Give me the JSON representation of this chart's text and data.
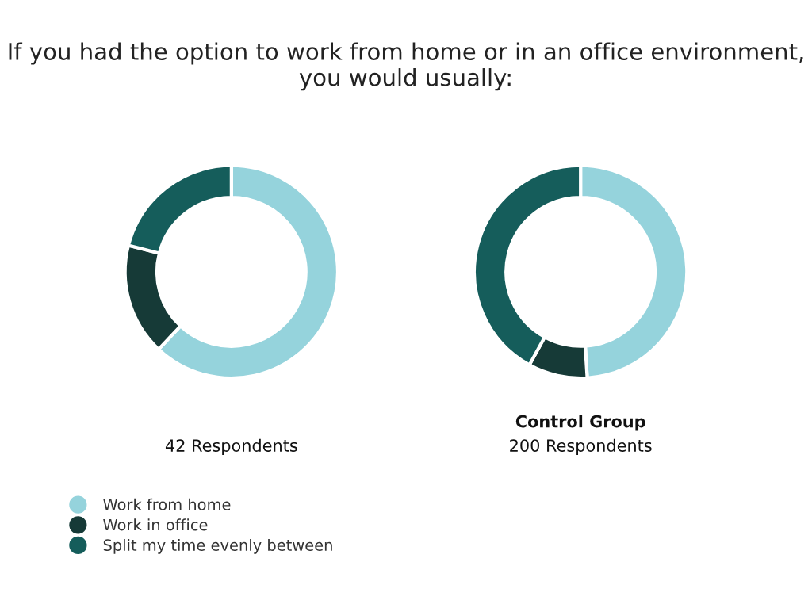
{
  "chart_data": [
    {
      "type": "donut",
      "title": "If you had the option to work from home or in an office environment, you would usually:",
      "xlabel": "42 Respondents",
      "categories": [
        "Work from home",
        "Work in office",
        "Split my time evenly between"
      ],
      "values": [
        62,
        17,
        21
      ],
      "colors": [
        "#95d3dc",
        "#163a37",
        "#155d5b"
      ],
      "legend": "bottom left"
    },
    {
      "type": "donut",
      "subtitle": "Control Group",
      "xlabel": "200 Respondents",
      "categories": [
        null,
        null,
        null
      ],
      "values": [
        49,
        9,
        42
      ],
      "colors": [
        "#95d3dc",
        "#163a37",
        "#155d5b"
      ]
    }
  ]
}
